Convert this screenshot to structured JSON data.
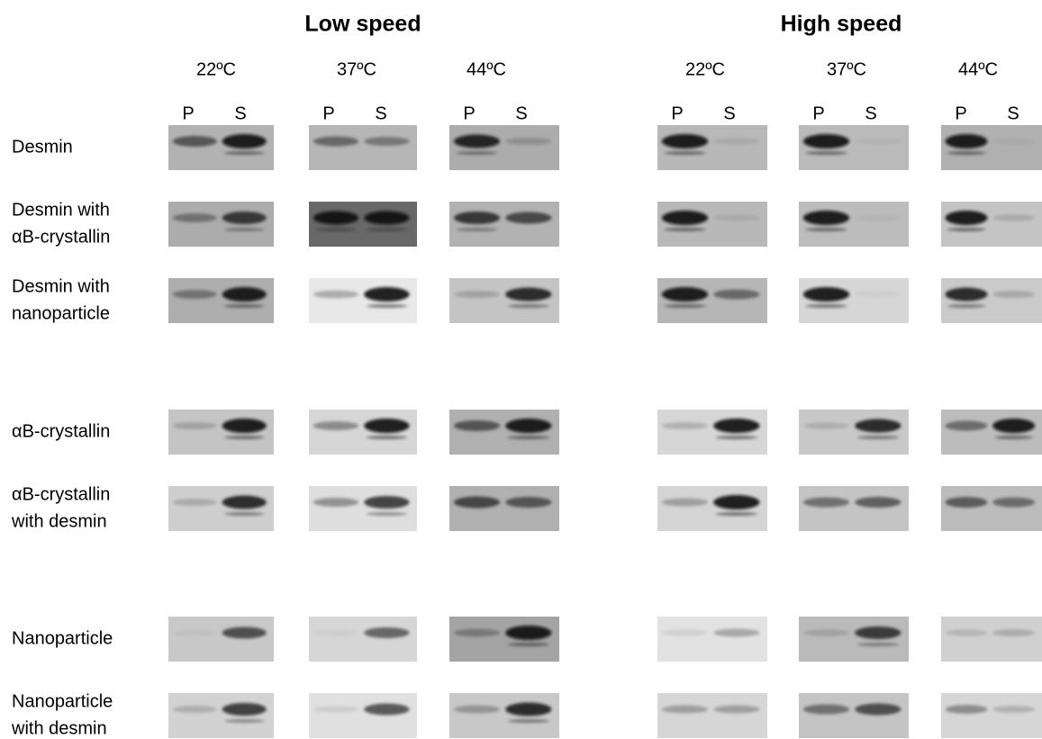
{
  "groups": [
    {
      "title": "Low speed",
      "temperatures": [
        "22ºC",
        "37ºC",
        "44ºC"
      ]
    },
    {
      "title": "High speed",
      "temperatures": [
        "22ºC",
        "37ºC",
        "44ºC"
      ]
    }
  ],
  "lanes": [
    [
      "P",
      "S"
    ],
    [
      "P",
      "S"
    ],
    [
      "P",
      "S"
    ],
    [
      "P",
      "S"
    ],
    [
      "P",
      "S"
    ],
    [
      "P",
      "S"
    ]
  ],
  "rows": [
    {
      "label": [
        "Desmin"
      ]
    },
    {
      "label": [
        "Desmin with",
        "αB-crystallin"
      ]
    },
    {
      "label": [
        "Desmin with",
        "nanoparticle"
      ]
    },
    {
      "label": [
        "αB-crystallin"
      ]
    },
    {
      "label": [
        "αB-crystallin",
        "with desmin"
      ]
    },
    {
      "label": [
        "Nanoparticle"
      ]
    },
    {
      "label": [
        "Nanoparticle",
        "with desmin"
      ]
    }
  ]
}
